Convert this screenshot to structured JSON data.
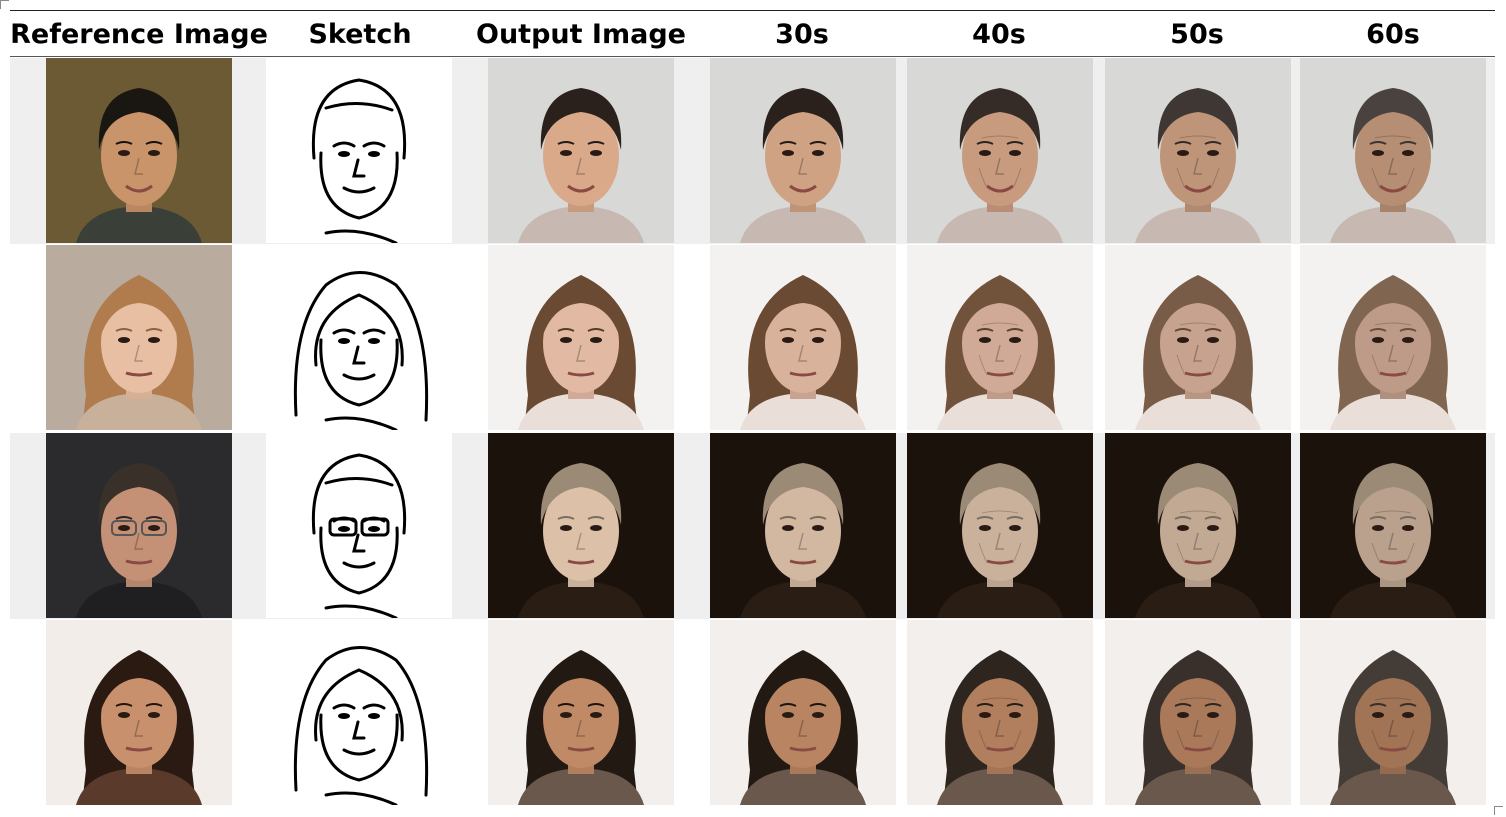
{
  "columns": [
    "Reference Image",
    "Sketch",
    "Output Image",
    "30s",
    "40s",
    "50s",
    "60s"
  ],
  "rows": [
    {
      "reference": {
        "bg": "#6b5a34",
        "skin": "#c9946a",
        "hair": "#1a1612",
        "shirt": "#3a4038"
      },
      "output": {
        "bg": "#d8d9d6",
        "skin": "#d9a98a",
        "hair": "#2a211c",
        "shirt": "#c8b8b2"
      }
    },
    {
      "reference": {
        "bg": "#b9ab9e",
        "skin": "#e8bfa2",
        "hair": "#b07c4e",
        "shirt": "#c9b09a"
      },
      "output": {
        "bg": "#f4f2f0",
        "skin": "#e2b9a3",
        "hair": "#6a4a32",
        "shirt": "#e9dfd8"
      }
    },
    {
      "reference": {
        "bg": "#2b2b2e",
        "skin": "#c49176",
        "hair": "#3a302a",
        "shirt": "#1f1f22"
      },
      "output": {
        "bg": "#1b120c",
        "skin": "#dcc0a8",
        "hair": "#9a8a76",
        "shirt": "#2a1d14"
      }
    },
    {
      "reference": {
        "bg": "#f2ede8",
        "skin": "#c8906c",
        "hair": "#2a1a12",
        "shirt": "#5a3a2a"
      },
      "output": {
        "bg": "#f3efec",
        "skin": "#c08a66",
        "hair": "#231913",
        "shirt": "#6a584c"
      }
    }
  ]
}
